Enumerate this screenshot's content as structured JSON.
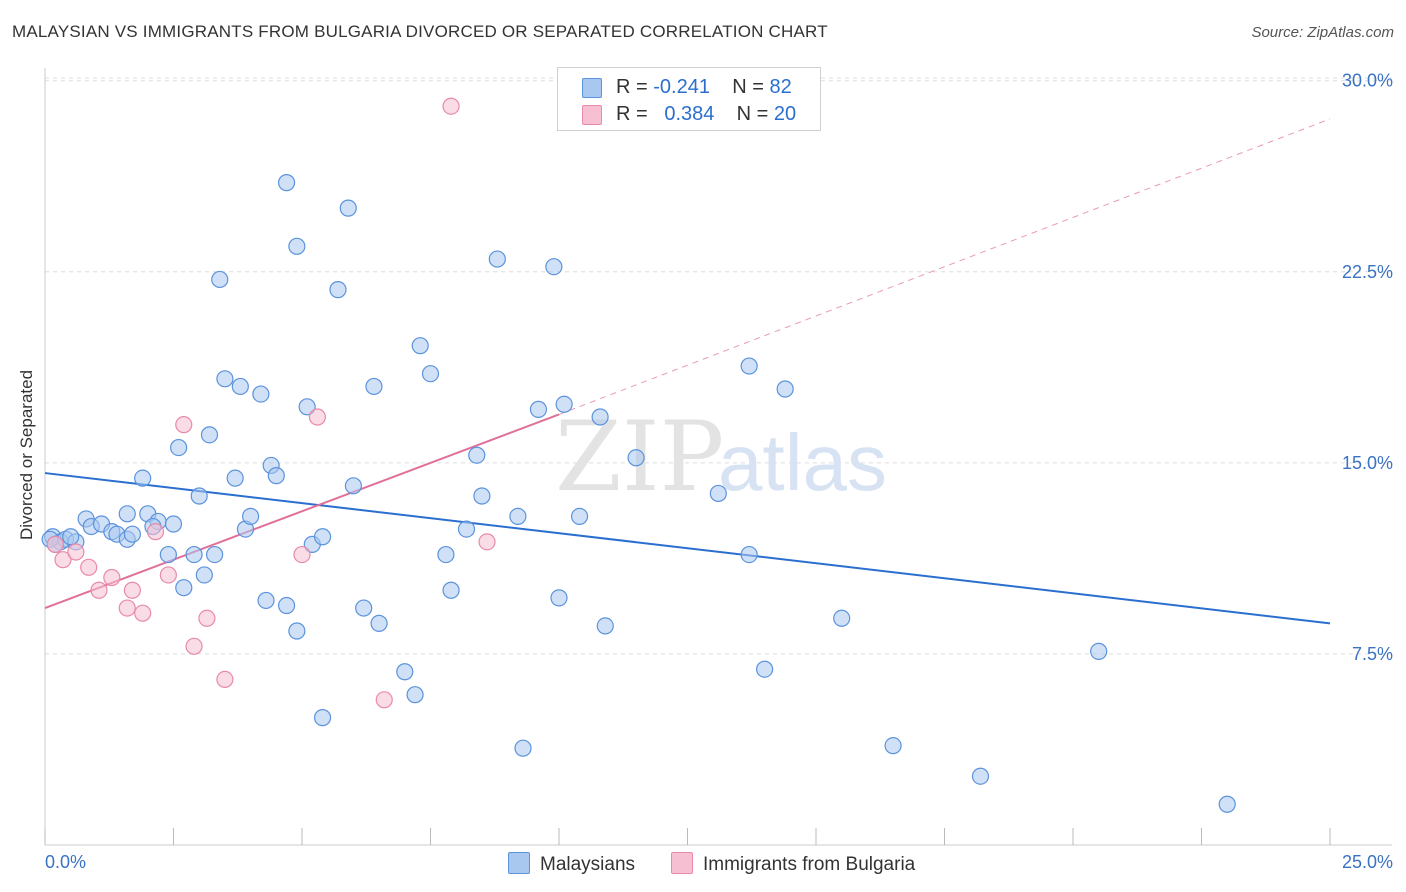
{
  "title": "MALAYSIAN VS IMMIGRANTS FROM BULGARIA DIVORCED OR SEPARATED CORRELATION CHART",
  "source": "Source: ZipAtlas.com",
  "watermark": {
    "zip": "ZIP",
    "atlas": "atlas"
  },
  "legend_top": {
    "row1": {
      "r_label": "R =",
      "r_value": "-0.241",
      "n_label": "N =",
      "n_value": "82"
    },
    "row2": {
      "r_label": "R =",
      "r_value": "0.384",
      "n_label": "N =",
      "n_value": "20"
    }
  },
  "legend_bottom": {
    "series1": "Malaysians",
    "series2": "Immigrants from Bulgaria"
  },
  "colors": {
    "blue_fill": "#a9c8f0",
    "blue_stroke": "#5b93dc",
    "blue_line": "#2a6fd0",
    "pink_fill": "#f6c0d2",
    "pink_stroke": "#e88aa8",
    "pink_line": "#e0709a",
    "grid": "#dddddd",
    "tick_label": "#3a72c4"
  },
  "chart_data": {
    "type": "scatter",
    "title": "MALAYSIAN VS IMMIGRANTS FROM BULGARIA DIVORCED OR SEPARATED CORRELATION CHART",
    "xlabel": "",
    "ylabel": "Divorced or Separated",
    "xlim": [
      0,
      25
    ],
    "ylim": [
      0,
      30.5
    ],
    "x_tick_labels": [
      "0.0%",
      "25.0%"
    ],
    "y_ticks": [
      7.5,
      15.0,
      22.5,
      30.0
    ],
    "y_tick_labels": [
      "7.5%",
      "15.0%",
      "22.5%",
      "30.0%"
    ],
    "grid": true,
    "legend_placement": "top-center",
    "series": [
      {
        "name": "Malaysians",
        "r": -0.241,
        "n": 82,
        "trend": {
          "x": [
            0,
            25
          ],
          "y": [
            14.6,
            8.7
          ]
        },
        "points": [
          [
            0.15,
            12.1
          ],
          [
            0.3,
            11.9
          ],
          [
            0.4,
            12.0
          ],
          [
            0.6,
            11.9
          ],
          [
            0.8,
            12.8
          ],
          [
            0.9,
            12.5
          ],
          [
            1.1,
            12.6
          ],
          [
            1.3,
            12.3
          ],
          [
            1.4,
            12.2
          ],
          [
            1.6,
            12.0
          ],
          [
            1.6,
            13.0
          ],
          [
            1.9,
            14.4
          ],
          [
            2.0,
            13.0
          ],
          [
            2.2,
            12.7
          ],
          [
            2.4,
            11.4
          ],
          [
            2.5,
            12.6
          ],
          [
            2.6,
            15.6
          ],
          [
            2.7,
            10.1
          ],
          [
            2.9,
            11.4
          ],
          [
            3.0,
            13.7
          ],
          [
            3.1,
            10.6
          ],
          [
            3.2,
            16.1
          ],
          [
            3.3,
            11.4
          ],
          [
            3.4,
            22.2
          ],
          [
            3.5,
            18.3
          ],
          [
            3.7,
            14.4
          ],
          [
            3.8,
            18.0
          ],
          [
            3.9,
            12.4
          ],
          [
            4.0,
            12.9
          ],
          [
            4.2,
            17.7
          ],
          [
            4.3,
            9.6
          ],
          [
            4.4,
            14.9
          ],
          [
            4.5,
            14.5
          ],
          [
            4.7,
            9.4
          ],
          [
            4.7,
            26.0
          ],
          [
            4.9,
            23.5
          ],
          [
            4.9,
            8.4
          ],
          [
            5.1,
            17.2
          ],
          [
            5.2,
            11.8
          ],
          [
            5.4,
            12.1
          ],
          [
            5.4,
            5.0
          ],
          [
            5.7,
            21.8
          ],
          [
            5.9,
            25.0
          ],
          [
            6.0,
            14.1
          ],
          [
            6.2,
            9.3
          ],
          [
            6.4,
            18.0
          ],
          [
            6.5,
            8.7
          ],
          [
            7.0,
            6.8
          ],
          [
            7.2,
            5.9
          ],
          [
            7.3,
            19.6
          ],
          [
            7.5,
            18.5
          ],
          [
            7.8,
            11.4
          ],
          [
            7.9,
            10.0
          ],
          [
            8.2,
            12.4
          ],
          [
            8.4,
            15.3
          ],
          [
            8.5,
            13.7
          ],
          [
            8.8,
            23.0
          ],
          [
            9.2,
            12.9
          ],
          [
            9.3,
            3.8
          ],
          [
            9.6,
            17.1
          ],
          [
            9.9,
            22.7
          ],
          [
            10.0,
            9.7
          ],
          [
            10.1,
            17.3
          ],
          [
            10.4,
            12.9
          ],
          [
            10.8,
            16.8
          ],
          [
            10.9,
            8.6
          ],
          [
            11.5,
            15.2
          ],
          [
            13.1,
            13.8
          ],
          [
            13.7,
            18.8
          ],
          [
            13.7,
            11.4
          ],
          [
            14.0,
            6.9
          ],
          [
            14.4,
            17.9
          ],
          [
            15.5,
            8.9
          ],
          [
            16.5,
            3.9
          ],
          [
            18.2,
            2.7
          ],
          [
            20.5,
            7.6
          ],
          [
            23.0,
            1.6
          ],
          [
            0.1,
            12.0
          ],
          [
            0.2,
            11.8
          ],
          [
            0.5,
            12.1
          ],
          [
            1.7,
            12.2
          ],
          [
            2.1,
            12.5
          ]
        ]
      },
      {
        "name": "Immigrants from Bulgaria",
        "r": 0.384,
        "n": 20,
        "trend": {
          "x": [
            0,
            10
          ],
          "y": [
            9.3,
            16.9
          ]
        },
        "trend_dashed": {
          "x": [
            10,
            25
          ],
          "y": [
            16.9,
            28.5
          ]
        },
        "points": [
          [
            0.2,
            11.8
          ],
          [
            0.35,
            11.2
          ],
          [
            0.6,
            11.5
          ],
          [
            0.85,
            10.9
          ],
          [
            1.05,
            10.0
          ],
          [
            1.3,
            10.5
          ],
          [
            1.6,
            9.3
          ],
          [
            1.7,
            10.0
          ],
          [
            1.9,
            9.1
          ],
          [
            2.15,
            12.3
          ],
          [
            2.4,
            10.6
          ],
          [
            2.7,
            16.5
          ],
          [
            2.9,
            7.8
          ],
          [
            3.15,
            8.9
          ],
          [
            3.5,
            6.5
          ],
          [
            5.0,
            11.4
          ],
          [
            5.3,
            16.8
          ],
          [
            6.6,
            5.7
          ],
          [
            8.6,
            11.9
          ],
          [
            7.9,
            29.0
          ]
        ]
      }
    ]
  }
}
